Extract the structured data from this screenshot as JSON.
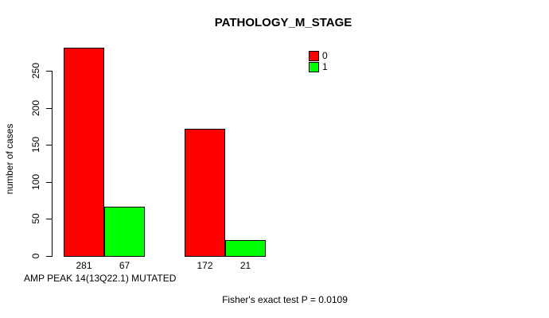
{
  "chart_data": {
    "type": "bar",
    "title": "PATHOLOGY_M_STAGE",
    "ylabel": "number of cases",
    "xlabel": "AMP PEAK 14(13Q22.1) MUTATED",
    "annotation": "Fisher's exact test P = 0.0109",
    "ylim": [
      0,
      250
    ],
    "yticks": [
      0,
      50,
      100,
      150,
      200,
      250
    ],
    "grid": false,
    "legend_position": "top-right",
    "categories": [
      "",
      ""
    ],
    "series": [
      {
        "name": "0",
        "color": "#ff0000",
        "values": [
          281,
          172
        ]
      },
      {
        "name": "1",
        "color": "#00ff00",
        "values": [
          67,
          21
        ]
      }
    ],
    "bar_value_labels": [
      [
        "281",
        "172"
      ],
      [
        "67",
        "21"
      ]
    ]
  }
}
